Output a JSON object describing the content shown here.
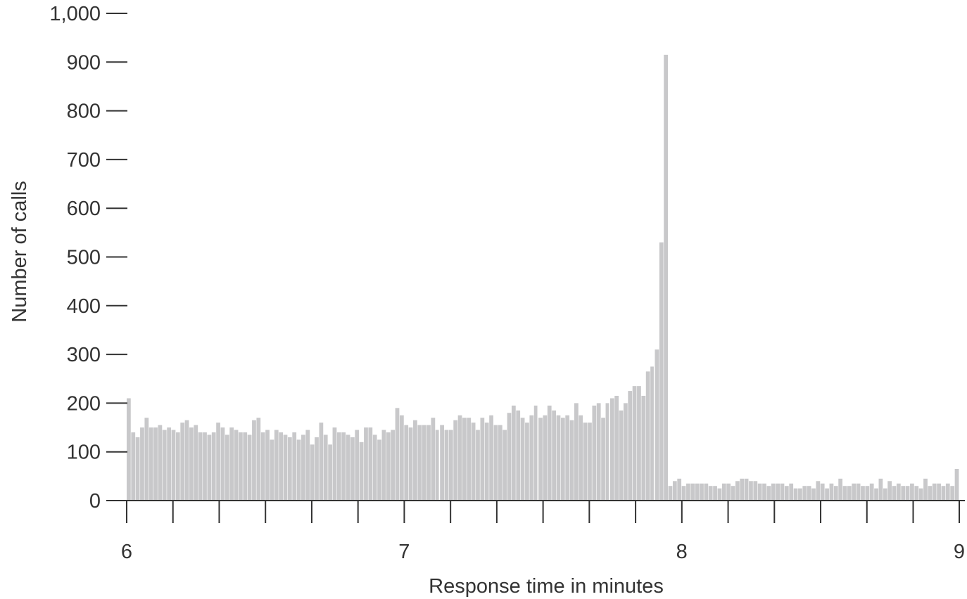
{
  "chart_data": {
    "type": "bar",
    "title": "",
    "xlabel": "Response time in minutes",
    "ylabel": "Number of calls",
    "xlim": [
      6,
      9
    ],
    "ylim": [
      0,
      1000
    ],
    "x_tick_labels": [
      "6",
      "7",
      "8",
      "9"
    ],
    "x_tick_values": [
      6,
      7,
      8,
      9
    ],
    "x_minor_tick_step": 0.1667,
    "y_tick_labels": [
      "0",
      "100",
      "200",
      "300",
      "400",
      "500",
      "600",
      "700",
      "800",
      "900",
      "1,000"
    ],
    "y_tick_values": [
      0,
      100,
      200,
      300,
      400,
      500,
      600,
      700,
      800,
      900,
      1000
    ],
    "bin_width_minutes": 0.0167,
    "grid": false,
    "legend": "none",
    "colors": {
      "bar": "#c8c8ca",
      "axis": "#333333",
      "text": "#333333",
      "background": "#ffffff"
    },
    "series": [
      {
        "values": [
          210,
          140,
          130,
          150,
          170,
          150,
          150,
          155,
          145,
          150,
          145,
          140,
          160,
          165,
          150,
          155,
          140,
          140,
          135,
          140,
          160,
          150,
          135,
          150,
          145,
          140,
          140,
          135,
          165,
          170,
          140,
          145,
          125,
          145,
          140,
          135,
          130,
          140,
          125,
          135,
          145,
          115,
          130,
          160,
          135,
          115,
          150,
          140,
          140,
          135,
          130,
          145,
          120,
          150,
          150,
          135,
          125,
          145,
          140,
          145,
          190,
          175,
          155,
          150,
          165,
          155,
          155,
          155,
          170,
          145,
          155,
          145,
          145,
          165,
          175,
          170,
          170,
          160,
          145,
          170,
          160,
          175,
          155,
          155,
          145,
          180,
          195,
          185,
          170,
          160,
          175,
          195,
          170,
          175,
          195,
          185,
          175,
          170,
          175,
          165,
          200,
          175,
          160,
          160,
          195,
          200,
          170,
          200,
          210,
          215,
          185,
          200,
          225,
          235,
          235,
          215,
          265,
          275,
          310,
          530,
          915,
          30,
          40,
          45,
          30,
          35,
          35,
          35,
          35,
          35,
          30,
          30,
          25,
          35,
          35,
          30,
          40,
          45,
          45,
          40,
          40,
          35,
          35,
          30,
          35,
          35,
          35,
          30,
          35,
          25,
          25,
          30,
          30,
          25,
          40,
          35,
          25,
          35,
          30,
          45,
          30,
          30,
          35,
          35,
          30,
          30,
          35,
          25,
          45,
          25,
          40,
          30,
          35,
          30,
          30,
          35,
          30,
          25,
          45,
          30,
          35,
          35,
          30,
          35,
          30,
          65
        ]
      }
    ]
  }
}
